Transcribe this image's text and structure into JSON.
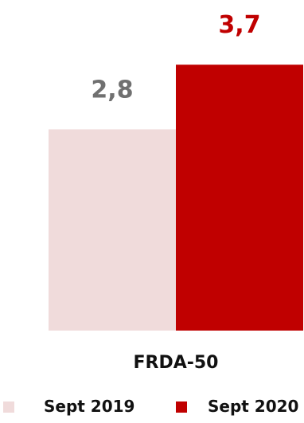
{
  "chart_data": {
    "type": "bar",
    "categories": [
      "FRDA-50"
    ],
    "series": [
      {
        "name": "Sept 2019",
        "values": [
          2.8
        ],
        "value_label": "2,8",
        "color": "#f0dbdb",
        "label_color": "#707070"
      },
      {
        "name": "Sept 2020",
        "values": [
          3.7
        ],
        "value_label": "3,7",
        "color": "#c00000",
        "label_color": "#c00000"
      }
    ],
    "ylim": [
      0,
      4.6
    ],
    "grid": false,
    "legend_position": "bottom"
  }
}
